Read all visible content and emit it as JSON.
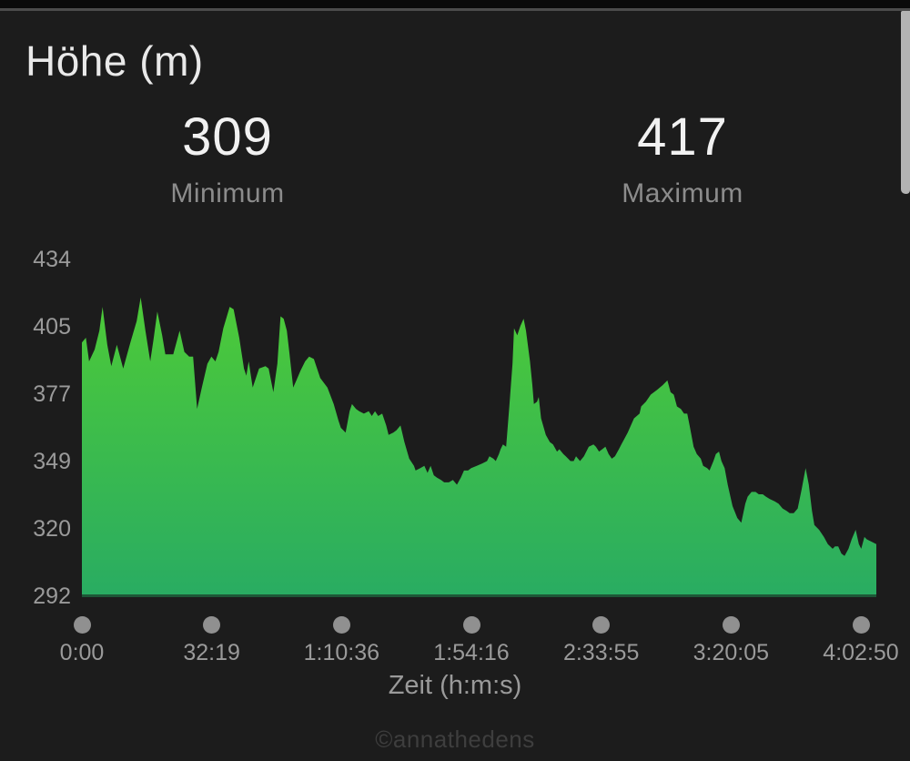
{
  "title": "Höhe (m)",
  "stats": {
    "min": {
      "value": "309",
      "label": "Minimum"
    },
    "max": {
      "value": "417",
      "label": "Maximum"
    }
  },
  "x_axis_label": "Zeit (h:m:s)",
  "watermark": "©annathedens",
  "scrollbar": {
    "name": "scrollbar-thumb",
    "color": "#b3b3b3"
  },
  "colors": {
    "background": "#1c1c1c",
    "top_strip": "#0a0a0a",
    "divider": "#4b4b4b",
    "title_text": "#e9e9e9",
    "stat_value_text": "#f1f1f1",
    "stat_label_text": "#8c8c8c",
    "axis_text": "#9a9a9a",
    "tick_dot": "#909090",
    "area_gradient_top": "#4ecb37",
    "area_gradient_bottom": "#29ac62",
    "baseline_line": "#1d5737",
    "watermark_text": "#3e3e3e"
  },
  "chart_data": {
    "type": "area",
    "title": "Höhe (m)",
    "xlabel": "Zeit (h:m:s)",
    "ylabel": "Höhe (m)",
    "ylim": [
      292,
      434
    ],
    "min_elevation": 309,
    "max_elevation": 417,
    "grid": false,
    "legend": "none",
    "y_ticks": [
      434,
      405,
      377,
      349,
      320,
      292
    ],
    "x_ticks": [
      "0:00",
      "32:19",
      "1:10:36",
      "1:54:16",
      "2:33:55",
      "3:20:05",
      "4:02:50"
    ],
    "gradient": {
      "top": "#4ecb37",
      "bottom": "#29ac62"
    },
    "profile": [
      [
        0.0,
        399
      ],
      [
        0.005,
        401
      ],
      [
        0.009,
        391
      ],
      [
        0.016,
        396
      ],
      [
        0.022,
        404
      ],
      [
        0.026,
        414
      ],
      [
        0.032,
        398
      ],
      [
        0.037,
        389
      ],
      [
        0.044,
        398
      ],
      [
        0.052,
        388
      ],
      [
        0.061,
        399
      ],
      [
        0.069,
        408
      ],
      [
        0.074,
        418
      ],
      [
        0.08,
        404
      ],
      [
        0.086,
        391
      ],
      [
        0.09,
        400
      ],
      [
        0.095,
        412
      ],
      [
        0.101,
        402
      ],
      [
        0.105,
        394
      ],
      [
        0.115,
        394
      ],
      [
        0.123,
        404
      ],
      [
        0.129,
        395
      ],
      [
        0.135,
        393
      ],
      [
        0.14,
        393
      ],
      [
        0.145,
        371
      ],
      [
        0.151,
        380
      ],
      [
        0.158,
        390
      ],
      [
        0.163,
        393
      ],
      [
        0.168,
        391
      ],
      [
        0.172,
        395
      ],
      [
        0.178,
        405
      ],
      [
        0.186,
        414
      ],
      [
        0.191,
        413
      ],
      [
        0.198,
        401
      ],
      [
        0.204,
        388
      ],
      [
        0.207,
        385
      ],
      [
        0.21,
        391
      ],
      [
        0.215,
        380
      ],
      [
        0.223,
        388
      ],
      [
        0.231,
        389
      ],
      [
        0.235,
        388
      ],
      [
        0.241,
        378
      ],
      [
        0.246,
        390
      ],
      [
        0.25,
        410
      ],
      [
        0.254,
        409
      ],
      [
        0.258,
        404
      ],
      [
        0.261,
        395
      ],
      [
        0.266,
        380
      ],
      [
        0.27,
        383
      ],
      [
        0.275,
        387
      ],
      [
        0.281,
        391
      ],
      [
        0.286,
        393
      ],
      [
        0.292,
        392
      ],
      [
        0.3,
        384
      ],
      [
        0.309,
        380
      ],
      [
        0.317,
        373
      ],
      [
        0.323,
        366
      ],
      [
        0.326,
        363
      ],
      [
        0.332,
        361
      ],
      [
        0.337,
        370
      ],
      [
        0.34,
        373
      ],
      [
        0.345,
        371
      ],
      [
        0.349,
        370
      ],
      [
        0.355,
        369
      ],
      [
        0.361,
        370
      ],
      [
        0.365,
        368
      ],
      [
        0.369,
        370
      ],
      [
        0.373,
        368
      ],
      [
        0.378,
        369
      ],
      [
        0.383,
        364
      ],
      [
        0.386,
        360
      ],
      [
        0.392,
        361
      ],
      [
        0.396,
        362
      ],
      [
        0.401,
        364
      ],
      [
        0.406,
        357
      ],
      [
        0.412,
        350
      ],
      [
        0.418,
        347
      ],
      [
        0.42,
        345
      ],
      [
        0.426,
        346
      ],
      [
        0.431,
        347
      ],
      [
        0.435,
        344
      ],
      [
        0.439,
        347
      ],
      [
        0.443,
        343
      ],
      [
        0.447,
        342
      ],
      [
        0.452,
        341
      ],
      [
        0.456,
        340
      ],
      [
        0.462,
        340
      ],
      [
        0.467,
        341
      ],
      [
        0.472,
        339
      ],
      [
        0.477,
        342
      ],
      [
        0.481,
        345
      ],
      [
        0.486,
        345
      ],
      [
        0.49,
        346
      ],
      [
        0.497,
        347
      ],
      [
        0.504,
        348
      ],
      [
        0.51,
        349
      ],
      [
        0.513,
        351
      ],
      [
        0.518,
        350
      ],
      [
        0.521,
        349
      ],
      [
        0.525,
        352
      ],
      [
        0.527,
        354
      ],
      [
        0.53,
        356
      ],
      [
        0.534,
        355
      ],
      [
        0.538,
        372
      ],
      [
        0.542,
        390
      ],
      [
        0.544,
        405
      ],
      [
        0.548,
        402
      ],
      [
        0.552,
        406
      ],
      [
        0.556,
        409
      ],
      [
        0.559,
        404
      ],
      [
        0.564,
        391
      ],
      [
        0.567,
        381
      ],
      [
        0.569,
        373
      ],
      [
        0.573,
        374
      ],
      [
        0.575,
        376
      ],
      [
        0.578,
        367
      ],
      [
        0.584,
        360
      ],
      [
        0.589,
        357
      ],
      [
        0.593,
        356
      ],
      [
        0.598,
        353
      ],
      [
        0.601,
        354
      ],
      [
        0.606,
        352
      ],
      [
        0.609,
        351
      ],
      [
        0.615,
        349
      ],
      [
        0.619,
        349
      ],
      [
        0.622,
        351
      ],
      [
        0.627,
        349
      ],
      [
        0.632,
        351
      ],
      [
        0.638,
        355
      ],
      [
        0.644,
        356
      ],
      [
        0.647,
        355
      ],
      [
        0.651,
        353
      ],
      [
        0.655,
        354
      ],
      [
        0.659,
        355
      ],
      [
        0.663,
        352
      ],
      [
        0.667,
        350
      ],
      [
        0.671,
        351
      ],
      [
        0.676,
        354
      ],
      [
        0.679,
        356
      ],
      [
        0.687,
        361
      ],
      [
        0.695,
        367
      ],
      [
        0.702,
        369
      ],
      [
        0.704,
        372
      ],
      [
        0.71,
        374
      ],
      [
        0.716,
        377
      ],
      [
        0.724,
        379
      ],
      [
        0.731,
        381
      ],
      [
        0.737,
        383
      ],
      [
        0.741,
        378
      ],
      [
        0.745,
        377
      ],
      [
        0.749,
        372
      ],
      [
        0.754,
        371
      ],
      [
        0.758,
        369
      ],
      [
        0.762,
        369
      ],
      [
        0.765,
        364
      ],
      [
        0.77,
        355
      ],
      [
        0.774,
        352
      ],
      [
        0.779,
        350
      ],
      [
        0.782,
        347
      ],
      [
        0.787,
        346
      ],
      [
        0.79,
        345
      ],
      [
        0.795,
        349
      ],
      [
        0.798,
        352
      ],
      [
        0.802,
        353
      ],
      [
        0.805,
        349
      ],
      [
        0.809,
        346
      ],
      [
        0.813,
        339
      ],
      [
        0.819,
        330
      ],
      [
        0.825,
        325
      ],
      [
        0.83,
        323
      ],
      [
        0.835,
        331
      ],
      [
        0.838,
        334
      ],
      [
        0.843,
        336
      ],
      [
        0.848,
        336
      ],
      [
        0.852,
        335
      ],
      [
        0.857,
        335
      ],
      [
        0.861,
        334
      ],
      [
        0.866,
        333
      ],
      [
        0.872,
        332
      ],
      [
        0.877,
        331
      ],
      [
        0.882,
        329
      ],
      [
        0.887,
        328
      ],
      [
        0.891,
        327
      ],
      [
        0.896,
        327
      ],
      [
        0.901,
        329
      ],
      [
        0.906,
        337
      ],
      [
        0.911,
        346
      ],
      [
        0.915,
        339
      ],
      [
        0.919,
        328
      ],
      [
        0.922,
        322
      ],
      [
        0.928,
        320
      ],
      [
        0.934,
        317
      ],
      [
        0.939,
        314
      ],
      [
        0.945,
        312
      ],
      [
        0.948,
        313
      ],
      [
        0.952,
        313
      ],
      [
        0.956,
        310
      ],
      [
        0.96,
        309
      ],
      [
        0.965,
        312
      ],
      [
        0.969,
        316
      ],
      [
        0.974,
        320
      ],
      [
        0.978,
        314
      ],
      [
        0.981,
        312
      ],
      [
        0.985,
        317
      ],
      [
        0.988,
        316
      ],
      [
        0.994,
        315
      ],
      [
        1.0,
        314
      ]
    ]
  }
}
